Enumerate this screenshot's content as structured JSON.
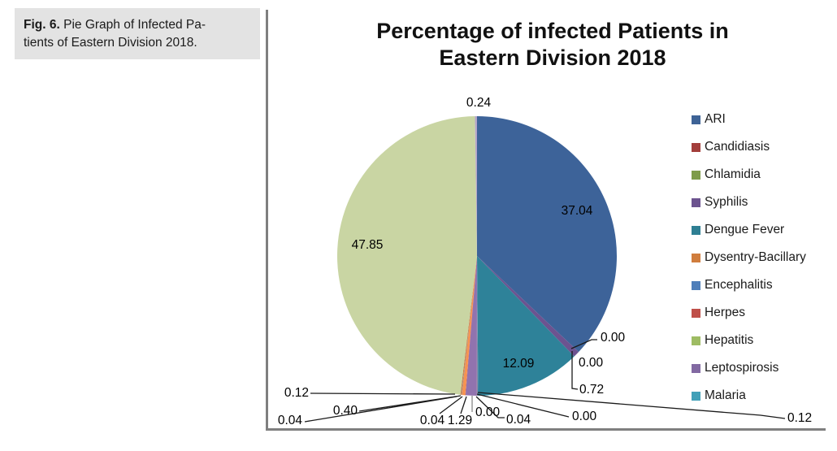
{
  "caption": {
    "fig_label": "Fig. 6.",
    "line1_rest": "Pie Graph of Infected Pa-",
    "line2": "tients of Eastern Division 2018."
  },
  "title": {
    "line1": "Percentage of infected Patients in",
    "line2": "Eastern Division 2018"
  },
  "chart_data": {
    "type": "pie",
    "title": "Percentage of infected Patients in Eastern Division 2018",
    "values_are": "percent",
    "legend_position": "right",
    "legend": [
      {
        "label": "ARI",
        "color": "#3E6396"
      },
      {
        "label": "Candidiasis",
        "color": "#A33E3B"
      },
      {
        "label": "Chlamidia",
        "color": "#7E9C49"
      },
      {
        "label": "Syphilis",
        "color": "#6C538F"
      },
      {
        "label": "Dengue Fever",
        "color": "#2E7F93"
      },
      {
        "label": "Dysentry-Bacillary",
        "color": "#D07D3D"
      },
      {
        "label": "Encephalitis",
        "color": "#4F7FBA"
      },
      {
        "label": "Herpes",
        "color": "#BF4F49"
      },
      {
        "label": "Hepatitis",
        "color": "#9EBC63"
      },
      {
        "label": "Leptospirosis",
        "color": "#8269A2"
      },
      {
        "label": "Malaria",
        "color": "#41A0B8"
      }
    ],
    "slices": [
      {
        "label": "ARI",
        "value": 37.04,
        "display": "37.04",
        "color": "#3D6399"
      },
      {
        "label": "",
        "value": 0.0,
        "display": "0.00",
        "color": "#A33E3B"
      },
      {
        "label": "",
        "value": 0.0,
        "display": "0.00",
        "color": "#7E9C49"
      },
      {
        "label": "Syphilis",
        "value": 0.72,
        "display": "0.72",
        "color": "#6C5390"
      },
      {
        "label": "Dengue Fever",
        "value": 12.09,
        "display": "12.09",
        "color": "#2E8299"
      },
      {
        "label": "",
        "value": 0.12,
        "display": "0.12",
        "color": "#4F7FBA"
      },
      {
        "label": "",
        "value": 0.0,
        "display": "0.00",
        "color": "#BF4F49"
      },
      {
        "label": "",
        "value": 0.04,
        "display": "0.04",
        "color": "#D07D3D"
      },
      {
        "label": "",
        "value": 0.0,
        "display": "0.00",
        "color": "#41A0B8"
      },
      {
        "label": "",
        "value": 1.29,
        "display": "1.29",
        "color": "#9173AE"
      },
      {
        "label": "",
        "value": 0.04,
        "display": "0.04",
        "color": "#BF4F49"
      },
      {
        "label": "",
        "value": 0.4,
        "display": "0.40",
        "color": "#F79350"
      },
      {
        "label": "",
        "value": 0.04,
        "display": "0.04",
        "color": "#4F7FBA"
      },
      {
        "label": "",
        "value": 0.12,
        "display": "0.12",
        "color": "#D07D3D"
      },
      {
        "label": "Hepatitis",
        "value": 47.85,
        "display": "47.85",
        "color": "#C9D5A3"
      },
      {
        "label": "",
        "value": 0.24,
        "display": "0.24",
        "color": "#B5A6C9"
      }
    ]
  }
}
